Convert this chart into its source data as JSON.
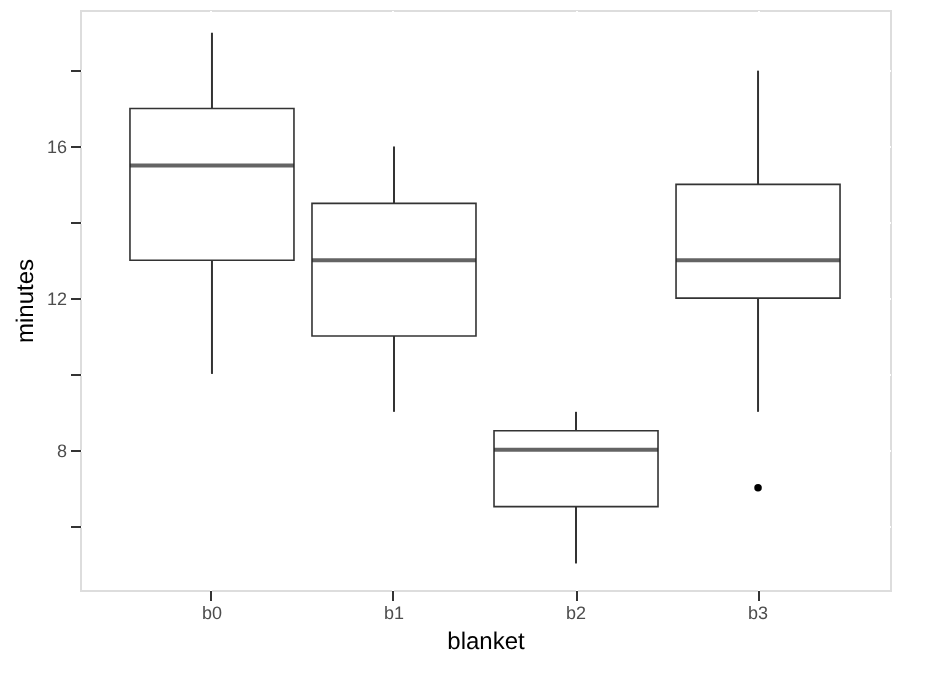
{
  "chart_data": {
    "type": "box",
    "xlabel": "blanket",
    "ylabel": "minutes",
    "categories": [
      "b0",
      "b1",
      "b2",
      "b3"
    ],
    "boxes": [
      {
        "low": 10,
        "q1": 13,
        "median": 15.5,
        "q3": 17,
        "high": 19
      },
      {
        "low": 9,
        "q1": 11,
        "median": 13,
        "q3": 14.5,
        "high": 16
      },
      {
        "low": 5,
        "q1": 6.5,
        "median": 8,
        "q3": 8.5,
        "high": 9
      },
      {
        "low": 9,
        "q1": 12,
        "median": 13,
        "q3": 15,
        "high": 18,
        "outliers": [
          7
        ]
      }
    ],
    "ylim": [
      4.3,
      19.6
    ],
    "yticks": [
      {
        "value": 6,
        "label": null
      },
      8,
      {
        "value": 10,
        "label": null
      },
      12,
      {
        "value": 14,
        "label": null
      },
      16,
      {
        "value": 18,
        "label": null
      }
    ],
    "grid": true
  }
}
